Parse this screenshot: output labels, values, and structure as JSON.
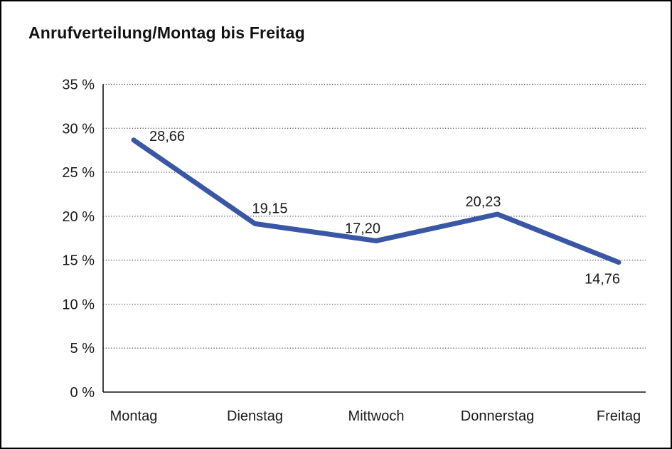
{
  "page": {
    "title": "Anrufverteilung/Montag bis Freitag"
  },
  "chart_data": {
    "type": "line",
    "title": "Anrufverteilung/Montag bis Freitag",
    "categories": [
      "Montag",
      "Dienstag",
      "Mittwoch",
      "Donnerstag",
      "Freitag"
    ],
    "values": [
      28.66,
      19.15,
      17.2,
      20.23,
      14.76
    ],
    "value_labels": [
      "28,66",
      "19,15",
      "17,20",
      "20,23",
      "14,76"
    ],
    "xlabel": "",
    "ylabel": "",
    "ylim": [
      0,
      35
    ],
    "ytick_values": [
      0,
      5,
      10,
      15,
      20,
      25,
      30,
      35
    ],
    "ytick_labels": [
      "0 %",
      "5 %",
      "10 %",
      "15 %",
      "20 %",
      "25 %",
      "30 %",
      "35 %"
    ],
    "grid": "horizontal-dotted",
    "legend": "none",
    "colors": {
      "line": "#3A57A5",
      "axis": "#111111",
      "gridline": "#555555",
      "text": "#1a1a1a",
      "background": "#ffffff"
    },
    "line_width": 7
  }
}
